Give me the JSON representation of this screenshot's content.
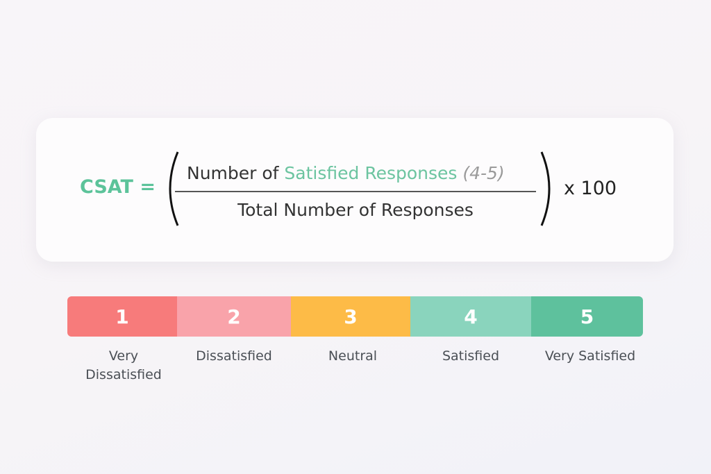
{
  "formula": {
    "lhs": "CSAT =",
    "numerator_prefix": "Number of ",
    "numerator_highlight": "Satisfied Responses",
    "numerator_range": "(4-5)",
    "denominator": "Total Number of Responses",
    "multiplier": "x 100",
    "accent_color": "#5cc39a"
  },
  "scale": [
    {
      "value": "1",
      "label": "Very Dissatisfied",
      "color": "#f77b7b"
    },
    {
      "value": "2",
      "label": "Dissatisfied",
      "color": "#f9a3aa"
    },
    {
      "value": "3",
      "label": "Neutral",
      "color": "#fdbb47"
    },
    {
      "value": "4",
      "label": "Satisfied",
      "color": "#8ad4bd"
    },
    {
      "value": "5",
      "label": "Very Satisfied",
      "color": "#5ec19d"
    }
  ]
}
